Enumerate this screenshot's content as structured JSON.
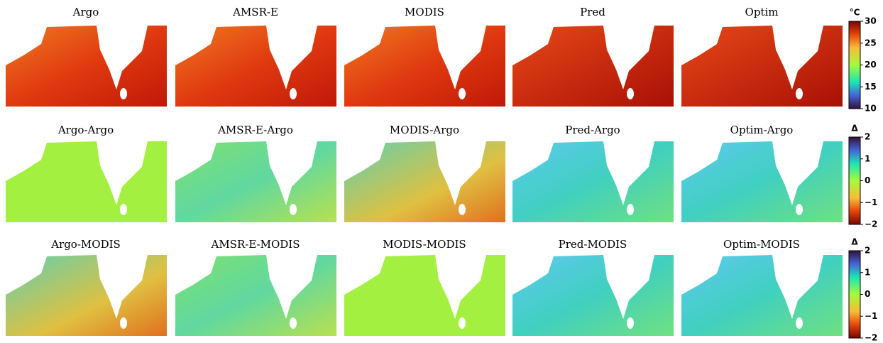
{
  "panels": [
    [
      "Argo",
      "AMSR-E",
      "MODIS",
      "Pred",
      "Optim"
    ],
    [
      "Argo-Argo",
      "AMSR-E-Argo",
      "MODIS-Argo",
      "Pred-Argo",
      "Optim-Argo"
    ],
    [
      "Argo-MODIS",
      "AMSR-E-MODIS",
      "MODIS-MODIS",
      "Pred-MODIS",
      "Optim-MODIS"
    ]
  ],
  "colorbars": [
    {
      "label": "°C",
      "lim": [
        10,
        30
      ],
      "ticks": [
        10,
        15,
        20,
        25,
        30
      ]
    },
    {
      "label": "Δ",
      "lim": [
        -2,
        2
      ],
      "ticks": [
        {
          "value": -2,
          "label": "−2"
        },
        {
          "value": -1,
          "label": "−1"
        },
        0,
        1,
        2
      ]
    },
    {
      "label": "Δ",
      "lim": [
        -2,
        2
      ],
      "ticks": [
        {
          "value": -2,
          "label": "−2"
        },
        {
          "value": -1,
          "label": "−1"
        },
        0,
        1,
        2
      ]
    }
  ]
}
